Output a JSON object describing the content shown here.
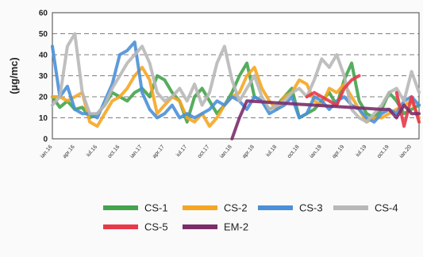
{
  "chart_data": {
    "type": "line",
    "ylabel": "(µg/mc)",
    "xlabel": "",
    "ylim": [
      0,
      60
    ],
    "yticks": [
      0,
      10,
      20,
      30,
      40,
      50,
      60
    ],
    "grid": true,
    "legend_position": "bottom",
    "categories": [
      "ian.16",
      "apr.16",
      "iul.16",
      "oct.16",
      "ian.17",
      "apr.17",
      "iul.17",
      "oct.17",
      "ian.18",
      "apr.18",
      "iul.18",
      "oct.18",
      "ian.19",
      "apr.19",
      "iul.19",
      "oct.19",
      "ian.20"
    ],
    "series": [
      {
        "name": "CS-1",
        "color": "#43a44c",
        "x": [
          0,
          1,
          2,
          3,
          4,
          5,
          6,
          7,
          8,
          9,
          10,
          11,
          12,
          13,
          14,
          15,
          16,
          17,
          18,
          19,
          20,
          21,
          22,
          23,
          24,
          25,
          26,
          27,
          28,
          29,
          30,
          31,
          32,
          33,
          34,
          35,
          36,
          37,
          38,
          39,
          40,
          41,
          42,
          43,
          44,
          45,
          46,
          47,
          48,
          49
        ],
        "values": [
          20,
          15,
          18,
          14,
          15,
          10,
          12,
          16,
          22,
          20,
          18,
          22,
          24,
          20,
          30,
          28,
          22,
          18,
          8,
          20,
          24,
          18,
          12,
          16,
          22,
          30,
          36,
          20,
          18,
          14,
          16,
          20,
          24,
          10,
          12,
          14,
          18,
          22,
          16,
          28,
          36,
          18,
          12,
          10,
          14,
          22,
          18,
          12,
          14,
          16
        ]
      },
      {
        "name": "CS-2",
        "color": "#f5a623",
        "x": [
          0,
          1,
          2,
          3,
          4,
          5,
          6,
          7,
          8,
          9,
          10,
          11,
          12,
          13,
          14,
          15,
          16,
          17,
          18,
          19,
          20,
          21,
          22,
          23,
          24,
          25,
          26,
          27,
          28,
          29,
          30,
          31,
          32,
          33,
          34,
          35,
          36,
          37,
          38,
          39,
          40,
          41,
          42,
          43,
          44,
          45,
          46,
          47,
          48,
          49
        ],
        "values": [
          20,
          20,
          18,
          20,
          22,
          8,
          6,
          12,
          18,
          20,
          24,
          30,
          34,
          28,
          12,
          16,
          20,
          18,
          10,
          8,
          12,
          6,
          10,
          16,
          20,
          22,
          30,
          34,
          24,
          18,
          14,
          20,
          22,
          28,
          26,
          18,
          16,
          24,
          22,
          26,
          20,
          14,
          8,
          10,
          10,
          12,
          14,
          16,
          18,
          10
        ]
      },
      {
        "name": "CS-3",
        "color": "#4a90d9",
        "x": [
          0,
          1,
          2,
          3,
          4,
          5,
          6,
          7,
          8,
          9,
          10,
          11,
          12,
          13,
          14,
          15,
          16,
          17,
          18,
          19,
          20,
          21,
          22,
          23,
          24,
          25,
          26,
          27,
          28,
          29,
          30,
          31,
          32,
          33,
          34,
          35,
          36,
          37,
          38,
          39,
          40,
          41,
          42,
          43,
          44,
          45,
          46,
          47,
          48,
          49
        ],
        "values": [
          44,
          20,
          25,
          14,
          12,
          12,
          10,
          18,
          26,
          40,
          42,
          46,
          22,
          14,
          10,
          12,
          16,
          10,
          12,
          10,
          12,
          14,
          18,
          16,
          20,
          18,
          14,
          20,
          18,
          12,
          14,
          16,
          20,
          10,
          12,
          20,
          18,
          14,
          18,
          20,
          16,
          14,
          10,
          8,
          12,
          14,
          12,
          18,
          20,
          16
        ]
      },
      {
        "name": "CS-4",
        "color": "#b8b8b8",
        "x": [
          0,
          1,
          2,
          3,
          4,
          5,
          6,
          7,
          8,
          9,
          10,
          11,
          12,
          13,
          14,
          15,
          16,
          17,
          18,
          19,
          20,
          21,
          22,
          23,
          24,
          25,
          26,
          27,
          28,
          29,
          30,
          31,
          32,
          33,
          34,
          35,
          36,
          37,
          38,
          39,
          40,
          41,
          42,
          43,
          44,
          45,
          46,
          47,
          48,
          49
        ],
        "values": [
          16,
          20,
          44,
          50,
          22,
          12,
          12,
          16,
          24,
          30,
          36,
          40,
          44,
          36,
          22,
          18,
          20,
          24,
          18,
          26,
          16,
          22,
          36,
          44,
          28,
          18,
          24,
          30,
          20,
          14,
          16,
          18,
          22,
          24,
          20,
          28,
          38,
          34,
          40,
          30,
          14,
          10,
          8,
          12,
          16,
          22,
          24,
          18,
          32,
          22
        ]
      },
      {
        "name": "CS-5",
        "color": "#e8394a",
        "x": [
          34,
          35,
          36,
          37,
          38,
          39,
          40,
          41,
          42,
          43,
          44,
          45,
          46,
          47,
          48,
          49
        ],
        "values": [
          20,
          22,
          20,
          18,
          16,
          24,
          28,
          30,
          null,
          null,
          null,
          null,
          22,
          6,
          20,
          8
        ]
      },
      {
        "name": "EM-2",
        "color": "#7b2d6b",
        "x": [
          24,
          25,
          26,
          44,
          45,
          46,
          47,
          48,
          49
        ],
        "values": [
          0,
          10,
          18,
          14,
          14,
          10,
          16,
          12,
          12
        ]
      }
    ]
  }
}
